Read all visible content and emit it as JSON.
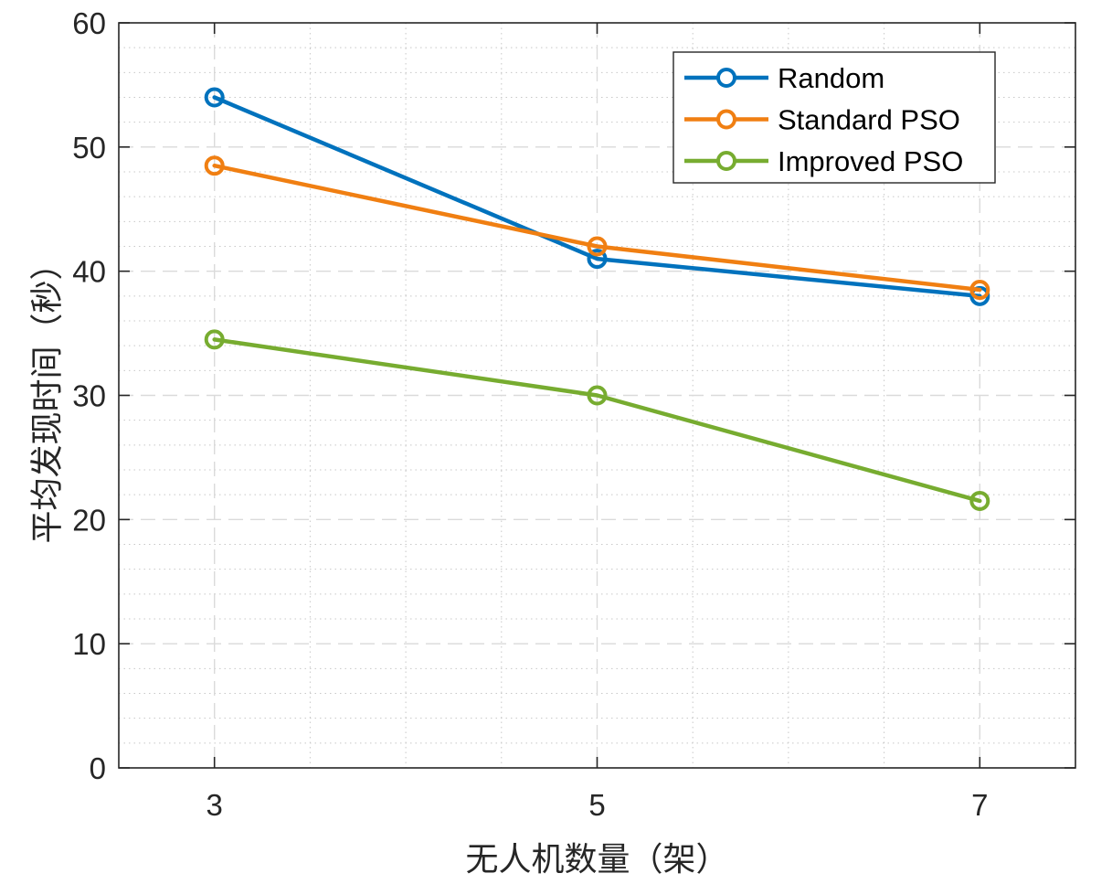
{
  "chart_data": {
    "type": "line",
    "xlabel": "无人机数量（架）",
    "ylabel": "平均发现时间（秒）",
    "x": [
      3,
      5,
      7
    ],
    "x_ticks": [
      "3",
      "5",
      "7"
    ],
    "xlim": [
      2.5,
      7.5
    ],
    "ylim": [
      0,
      60
    ],
    "y_ticks": [
      "0",
      "10",
      "20",
      "30",
      "40",
      "50",
      "60"
    ],
    "grid": true,
    "legend_position": "top-right",
    "series": [
      {
        "name": "Random",
        "values": [
          54,
          41,
          38
        ],
        "color": "#0072BD",
        "marker": "circle"
      },
      {
        "name": "Standard PSO",
        "values": [
          48.5,
          42,
          38.5
        ],
        "color": "#F07F12",
        "marker": "circle"
      },
      {
        "name": "Improved PSO",
        "values": [
          34.5,
          30,
          21.5
        ],
        "color": "#77AC30",
        "marker": "circle"
      }
    ]
  }
}
